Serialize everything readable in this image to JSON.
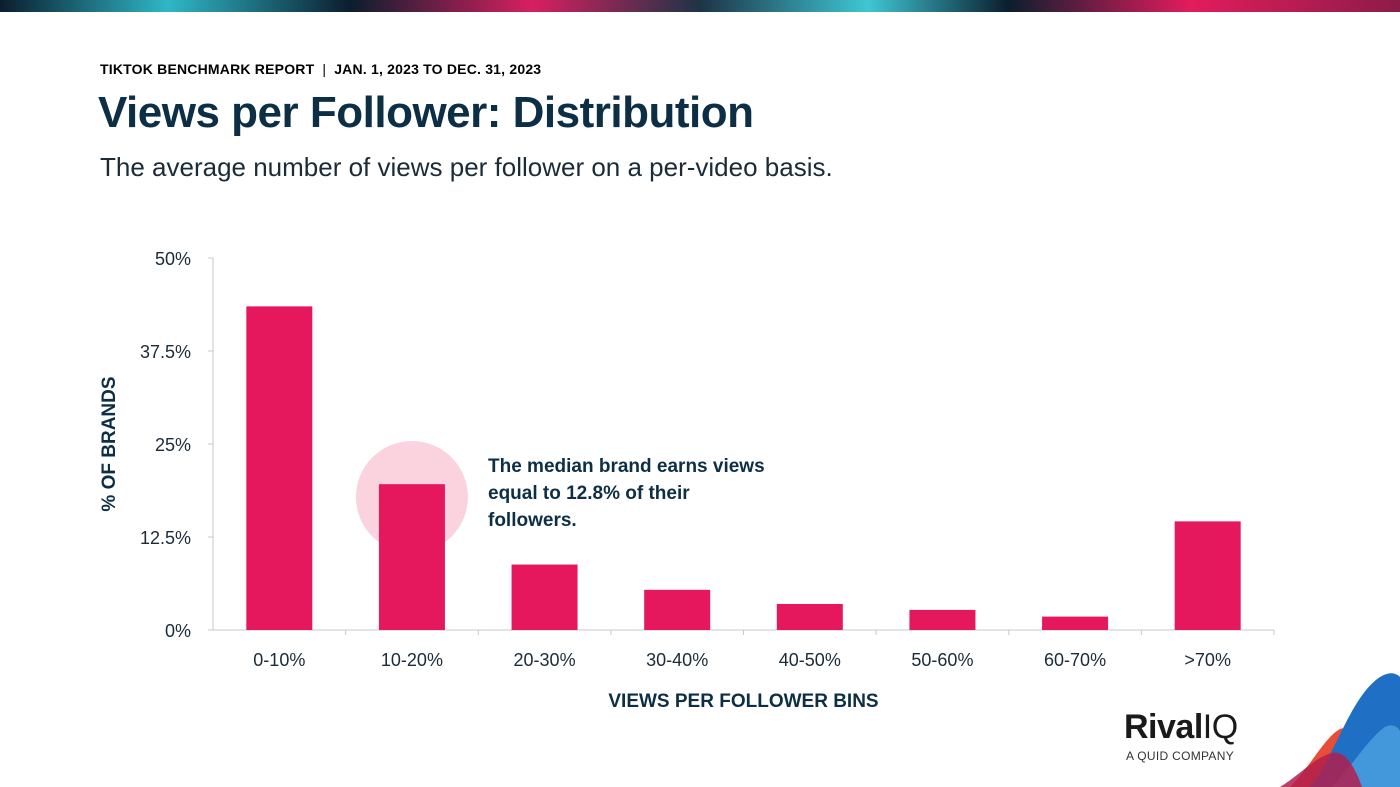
{
  "header": {
    "report_name": "TIKTOK BENCHMARK REPORT",
    "separator": "|",
    "date_range": "JAN. 1, 2023 TO DEC. 31, 2023",
    "title": "Views per Follower: Distribution",
    "subtitle": "The average number of views per follower on a per-video basis."
  },
  "colors": {
    "accent": "#e5185d",
    "title": "#0d2f45",
    "highlight_circle": "#fbd3df",
    "axis": "#c8c8c8"
  },
  "callout": {
    "text": "The median brand earns views equal to 12.8% of their followers."
  },
  "logo": {
    "brand": "Rival",
    "brand_suffix": "IQ",
    "tagline": "A QUID COMPANY"
  },
  "chart_data": {
    "type": "bar",
    "categories": [
      "0-10%",
      "10-20%",
      "20-30%",
      "30-40%",
      "40-50%",
      "50-60%",
      "60-70%",
      ">70%"
    ],
    "values": [
      43.5,
      19.6,
      8.8,
      5.4,
      3.5,
      2.7,
      1.8,
      14.6
    ],
    "xlabel": "VIEWS PER FOLLOWER BINS",
    "ylabel": "% OF BRANDS",
    "ylim": [
      0,
      50
    ],
    "yticks": [
      0,
      12.5,
      25,
      37.5,
      50
    ],
    "ytick_labels": [
      "0%",
      "12.5%",
      "25%",
      "37.5%",
      "50%"
    ],
    "grid": false,
    "highlighted_category": "10-20%"
  }
}
